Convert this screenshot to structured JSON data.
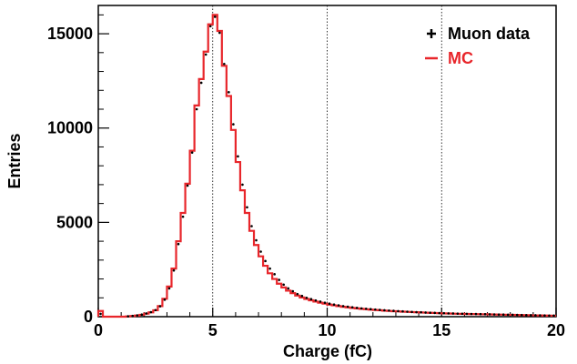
{
  "chart_data": {
    "type": "line",
    "xlabel": "Charge (fC)",
    "ylabel": "Entries",
    "xlim": [
      0,
      20
    ],
    "ylim": [
      0,
      16500
    ],
    "x_ticks": [
      "0",
      "5",
      "10",
      "15",
      "20"
    ],
    "y_ticks": [
      "0",
      "5000",
      "10000",
      "15000"
    ],
    "grid": "vertical dotted lines at x = 5, 10, 15",
    "legend_position": "top-right",
    "bin_width": 0.2,
    "bin_edges_start": 0,
    "series": [
      {
        "name": "Muon data",
        "style": "markers",
        "color": "#000000",
        "values": [
          150,
          0,
          0,
          0,
          0,
          0,
          20,
          40,
          70,
          110,
          170,
          240,
          350,
          550,
          900,
          1500,
          2450,
          3850,
          5300,
          6950,
          8700,
          11000,
          12400,
          13900,
          15400,
          15900,
          15050,
          13400,
          11900,
          10200,
          8500,
          7000,
          5800,
          4800,
          4050,
          3450,
          2950,
          2550,
          2250,
          1950,
          1700,
          1500,
          1350,
          1200,
          1100,
          1000,
          930,
          860,
          800,
          740,
          690,
          640,
          600,
          560,
          530,
          500,
          470,
          440,
          420,
          400,
          380,
          360,
          340,
          325,
          310,
          295,
          280,
          265,
          250,
          240,
          230,
          220,
          210,
          200,
          190,
          185,
          175,
          170,
          160,
          155,
          150,
          145,
          140,
          135,
          130,
          125,
          120,
          115,
          110,
          105,
          100,
          95,
          90,
          85,
          80,
          75,
          70,
          65,
          60,
          55
        ]
      },
      {
        "name": "MC",
        "style": "step",
        "color": "#e8262b",
        "values": [
          300,
          0,
          0,
          0,
          0,
          0,
          15,
          35,
          60,
          100,
          160,
          230,
          340,
          560,
          950,
          1600,
          2550,
          4000,
          5500,
          7050,
          8800,
          11200,
          12600,
          14050,
          15500,
          16000,
          15150,
          13300,
          11700,
          9900,
          8200,
          6700,
          5500,
          4550,
          3800,
          3200,
          2700,
          2300,
          2000,
          1750,
          1550,
          1380,
          1250,
          1120,
          1020,
          940,
          870,
          800,
          740,
          690,
          640,
          600,
          560,
          525,
          495,
          465,
          440,
          415,
          395,
          375,
          355,
          340,
          320,
          305,
          290,
          280,
          265,
          255,
          245,
          235,
          225,
          215,
          205,
          195,
          185,
          175,
          170,
          160,
          155,
          150,
          145,
          140,
          135,
          130,
          125,
          120,
          115,
          110,
          105,
          100,
          95,
          90,
          85,
          80,
          75,
          70,
          65,
          60,
          55,
          50
        ]
      }
    ]
  }
}
